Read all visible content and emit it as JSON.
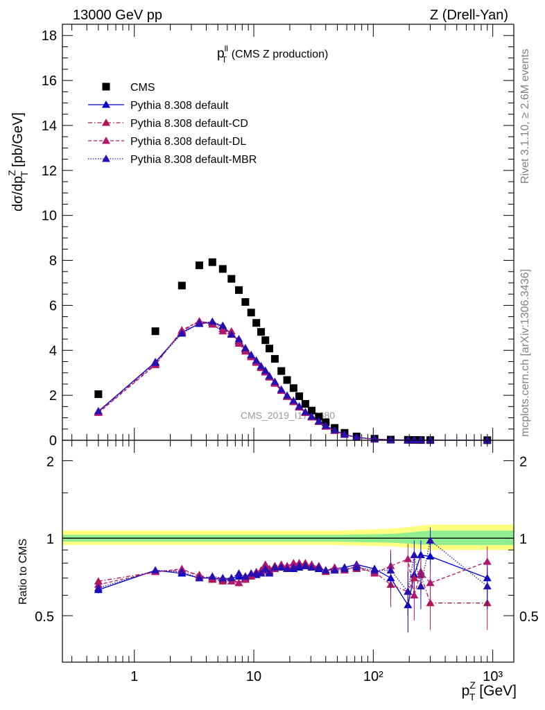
{
  "header": {
    "energy": "13000 GeV pp",
    "process": "Z (Drell-Yan)"
  },
  "side_labels": {
    "rivet": "Rivet 3.1.10, ≥ 2.6M events",
    "source": "mcplots.cern.ch [arXiv:1306.3436]"
  },
  "plot_title": {
    "main": "p",
    "sup": "ll",
    "sub": "T",
    "rest": " (CMS Z production)"
  },
  "analysis_id": "CMS_2019_I1753680",
  "x_axis": {
    "main": "p",
    "sup": "Z",
    "sub": "T",
    "unit": " [GeV]"
  },
  "y_axis_top": {
    "pre": "dσ/dp",
    "sup": "Z",
    "sub": "T",
    "unit": " [pb/GeV]"
  },
  "y_axis_ratio": "Ratio to CMS",
  "colors": {
    "data": "#000000",
    "default": "#0000cc",
    "cd": "#b0174f",
    "dl": "#b0176f",
    "mbr": "#2a0fb0",
    "band_inner": "#90ee90",
    "band_outer": "#ffff80"
  },
  "chart_data": [
    {
      "type": "scatter",
      "panel": "main",
      "xscale": "log",
      "xlim": [
        0.25,
        1500
      ],
      "ylim": [
        0,
        18.5
      ],
      "yticks": [
        0,
        2,
        4,
        6,
        8,
        10,
        12,
        14,
        16,
        18
      ],
      "xtick_labels": [
        "1",
        "10",
        "10²",
        "10³"
      ],
      "legend_placement": "top-left",
      "x": [
        0.5,
        1.5,
        2.5,
        3.5,
        4.5,
        5.5,
        6.5,
        7.5,
        8.5,
        9.5,
        10.5,
        11.5,
        12.5,
        13.5,
        15,
        17,
        19,
        21.5,
        24,
        27,
        30.5,
        35,
        40,
        47.5,
        57.5,
        72.5,
        102.5,
        140,
        195,
        220,
        250,
        300,
        900
      ],
      "series": [
        {
          "name": "CMS",
          "style": "square",
          "values": [
            2.05,
            4.85,
            6.88,
            7.78,
            7.92,
            7.62,
            7.18,
            6.68,
            6.15,
            5.68,
            5.22,
            4.82,
            4.45,
            4.08,
            3.62,
            3.08,
            2.68,
            2.32,
            1.96,
            1.62,
            1.32,
            1.05,
            0.8,
            0.55,
            0.33,
            0.17,
            0.07,
            0.03,
            0.02,
            0.015,
            0.012,
            0.01,
            0.005
          ]
        },
        {
          "name": "Pythia 8.308 default",
          "style": "solid",
          "values": [
            1.28,
            3.48,
            4.8,
            5.18,
            5.25,
            5.05,
            4.72,
            4.42,
            4.05,
            3.78,
            3.52,
            3.28,
            3.08,
            2.85,
            2.58,
            2.25,
            1.98,
            1.75,
            1.5,
            1.25,
            1.05,
            0.84,
            0.64,
            0.44,
            0.26,
            0.13,
            0.055,
            0.022,
            0.012,
            0.011,
            0.01,
            0.008,
            0.003
          ]
        },
        {
          "name": "Pythia 8.308 default-CD",
          "style": "dashdot",
          "values": [
            1.25,
            3.4,
            4.85,
            5.28,
            5.22,
            4.95,
            4.75,
            4.38,
            4.02,
            3.72,
            3.48,
            3.25,
            3.05,
            2.82,
            2.55,
            2.22,
            1.95,
            1.72,
            1.48,
            1.24,
            1.03,
            0.83,
            0.62,
            0.43,
            0.25,
            0.12,
            0.052,
            0.021,
            0.011,
            0.009,
            0.008,
            0.006,
            0.003
          ]
        },
        {
          "name": "Pythia 8.308 default-DL",
          "style": "dashed",
          "values": [
            1.22,
            3.35,
            4.9,
            5.3,
            5.15,
            4.85,
            4.85,
            4.3,
            3.95,
            3.7,
            3.45,
            3.22,
            3.02,
            2.8,
            2.52,
            2.2,
            1.93,
            1.7,
            1.46,
            1.22,
            1.02,
            0.82,
            0.61,
            0.42,
            0.25,
            0.12,
            0.05,
            0.02,
            0.011,
            0.009,
            0.008,
            0.006,
            0.003
          ]
        },
        {
          "name": "Pythia 8.308 default-MBR",
          "style": "dotted",
          "values": [
            1.3,
            3.45,
            4.75,
            5.2,
            5.28,
            5.1,
            4.7,
            4.5,
            4.1,
            3.8,
            3.55,
            3.3,
            3.1,
            2.86,
            2.6,
            2.26,
            1.99,
            1.76,
            1.51,
            1.26,
            1.06,
            0.85,
            0.65,
            0.45,
            0.26,
            0.13,
            0.056,
            0.023,
            0.012,
            0.011,
            0.01,
            0.008,
            0.003
          ]
        }
      ]
    },
    {
      "type": "scatter",
      "panel": "ratio",
      "xscale": "log",
      "xlim": [
        0.25,
        1500
      ],
      "ylim": [
        0.33,
        2.4
      ],
      "yticks": [
        0.5,
        1,
        2
      ],
      "ytick_labels": [
        "0.5",
        "1",
        "2"
      ],
      "x": [
        0.5,
        1.5,
        2.5,
        3.5,
        4.5,
        5.5,
        6.5,
        7.5,
        8.5,
        9.5,
        10.5,
        11.5,
        12.5,
        13.5,
        15,
        17,
        19,
        21.5,
        24,
        27,
        30.5,
        35,
        40,
        47.5,
        57.5,
        72.5,
        102.5,
        140,
        195,
        220,
        250,
        300,
        900
      ],
      "band": {
        "x": [
          0.25,
          50,
          150,
          300,
          1500
        ],
        "inner_lo": [
          0.97,
          0.97,
          0.96,
          0.94,
          0.94
        ],
        "inner_hi": [
          1.03,
          1.03,
          1.04,
          1.07,
          1.07
        ],
        "outer_lo": [
          0.94,
          0.94,
          0.93,
          0.9,
          0.9
        ],
        "outer_hi": [
          1.07,
          1.07,
          1.09,
          1.13,
          1.13
        ]
      },
      "series": [
        {
          "name": "Pythia 8.308 default",
          "style": "solid",
          "values": [
            0.63,
            0.75,
            0.73,
            0.7,
            0.7,
            0.69,
            0.7,
            0.71,
            0.7,
            0.72,
            0.72,
            0.73,
            0.75,
            0.74,
            0.76,
            0.77,
            0.76,
            0.76,
            0.77,
            0.78,
            0.77,
            0.76,
            0.75,
            0.76,
            0.77,
            0.79,
            0.76,
            0.7,
            0.55,
            0.72,
            0.86,
            0.85,
            0.7
          ]
        },
        {
          "name": "Pythia 8.308 default-CD",
          "style": "dashdot",
          "values": [
            0.68,
            0.74,
            0.75,
            0.72,
            0.69,
            0.68,
            0.7,
            0.67,
            0.71,
            0.71,
            0.73,
            0.75,
            0.78,
            0.76,
            0.78,
            0.79,
            0.77,
            0.78,
            0.79,
            0.8,
            0.77,
            0.78,
            0.74,
            0.75,
            0.76,
            0.76,
            0.74,
            0.66,
            0.62,
            0.7,
            0.72,
            0.56,
            0.56
          ]
        },
        {
          "name": "Pythia 8.308 default-DL",
          "style": "dashed",
          "values": [
            0.66,
            0.74,
            0.76,
            0.71,
            0.7,
            0.7,
            0.68,
            0.67,
            0.69,
            0.72,
            0.74,
            0.74,
            0.79,
            0.75,
            0.76,
            0.78,
            0.78,
            0.8,
            0.8,
            0.78,
            0.79,
            0.77,
            0.75,
            0.77,
            0.75,
            0.78,
            0.73,
            0.78,
            0.83,
            0.6,
            0.74,
            0.67,
            0.81
          ]
        },
        {
          "name": "Pythia 8.308 default-MBR",
          "style": "dotted",
          "values": [
            0.64,
            0.75,
            0.74,
            0.7,
            0.71,
            0.7,
            0.7,
            0.73,
            0.71,
            0.73,
            0.73,
            0.73,
            0.76,
            0.73,
            0.77,
            0.77,
            0.76,
            0.77,
            0.78,
            0.78,
            0.77,
            0.77,
            0.75,
            0.75,
            0.76,
            0.77,
            0.75,
            0.75,
            0.62,
            0.86,
            0.65,
            0.98,
            0.65
          ]
        }
      ]
    }
  ]
}
